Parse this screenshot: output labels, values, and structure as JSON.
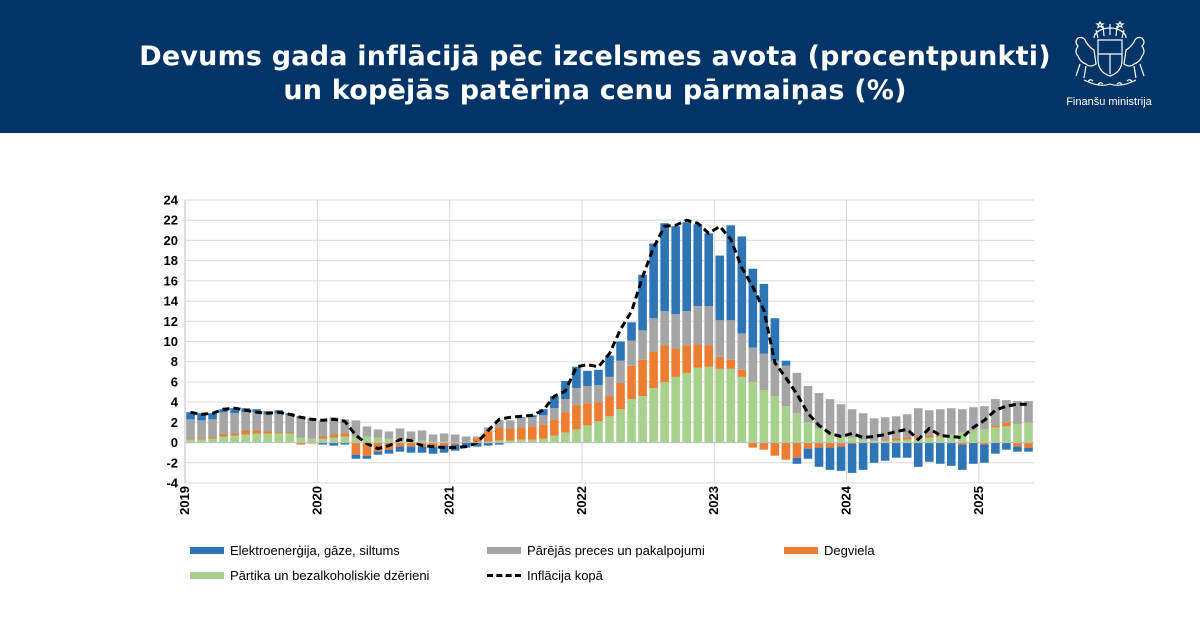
{
  "header": {
    "title_line1": "Devums gada inflācijā pēc izcelsmes avota (procentpunkti)",
    "title_line2": "un kopējās patēriņa cenu pārmaiņas (%)",
    "logo_caption": "Finanšu ministrija",
    "background": "#023467"
  },
  "legend": {
    "energy": "Elektroenerģija, gāze, siltums",
    "other": "Pārējās preces un pakalpojumi",
    "fuel": "Degviela",
    "food": "Pārtika un bezalkoholiskie dzērieni",
    "inflation": "Inflācija kopā"
  },
  "chart_data": {
    "type": "bar",
    "stacked": true,
    "grid": true,
    "legend_position": "bottom",
    "ylim": [
      -4,
      24
    ],
    "yticks": [
      "-4",
      "-2",
      "0",
      "2",
      "4",
      "6",
      "8",
      "10",
      "12",
      "14",
      "16",
      "18",
      "20",
      "22",
      "24"
    ],
    "xtick_labels": [
      "2019",
      "2020",
      "2021",
      "2022",
      "2023",
      "2024",
      "2025"
    ],
    "start": "2019-01",
    "months": [
      "2019-01",
      "2019-02",
      "2019-03",
      "2019-04",
      "2019-05",
      "2019-06",
      "2019-07",
      "2019-08",
      "2019-09",
      "2019-10",
      "2019-11",
      "2019-12",
      "2020-01",
      "2020-02",
      "2020-03",
      "2020-04",
      "2020-05",
      "2020-06",
      "2020-07",
      "2020-08",
      "2020-09",
      "2020-10",
      "2020-11",
      "2020-12",
      "2021-01",
      "2021-02",
      "2021-03",
      "2021-04",
      "2021-05",
      "2021-06",
      "2021-07",
      "2021-08",
      "2021-09",
      "2021-10",
      "2021-11",
      "2021-12",
      "2022-01",
      "2022-02",
      "2022-03",
      "2022-04",
      "2022-05",
      "2022-06",
      "2022-07",
      "2022-08",
      "2022-09",
      "2022-10",
      "2022-11",
      "2022-12",
      "2023-01",
      "2023-02",
      "2023-03",
      "2023-04",
      "2023-05",
      "2023-06",
      "2023-07",
      "2023-08",
      "2023-09",
      "2023-10",
      "2023-11",
      "2023-12",
      "2024-01",
      "2024-02",
      "2024-03",
      "2024-04",
      "2024-05",
      "2024-06",
      "2024-07",
      "2024-08",
      "2024-09",
      "2024-10",
      "2024-11",
      "2024-12",
      "2025-01",
      "2025-02",
      "2025-03",
      "2025-04",
      "2025-05"
    ],
    "colors": {
      "energy": "#2e75b6",
      "other": "#a5a5a5",
      "fuel": "#ed7d31",
      "food": "#a9d18e",
      "inflation": "#000000"
    },
    "series": [
      {
        "name": "Pārtika un bezalkoholiskie dzērieni",
        "key": "food",
        "values": [
          0.3,
          0.3,
          0.4,
          0.6,
          0.7,
          0.8,
          0.9,
          0.9,
          0.9,
          0.9,
          0.5,
          0.4,
          0.4,
          0.5,
          0.6,
          0.6,
          0.6,
          0.5,
          0.4,
          0.3,
          0.3,
          0.2,
          0.1,
          0.1,
          0.0,
          0.0,
          0.0,
          0.1,
          0.2,
          0.2,
          0.3,
          0.3,
          0.4,
          0.7,
          1.0,
          1.3,
          1.7,
          2.1,
          2.6,
          3.3,
          4.3,
          4.6,
          5.4,
          6.0,
          6.5,
          6.9,
          7.4,
          7.5,
          7.3,
          7.3,
          6.5,
          6.0,
          5.2,
          4.6,
          3.6,
          2.9,
          2.0,
          1.4,
          0.9,
          0.6,
          0.5,
          0.3,
          0.2,
          0.2,
          0.2,
          0.3,
          0.4,
          0.5,
          0.6,
          0.8,
          1.0,
          1.2,
          1.3,
          1.5,
          1.6,
          1.8,
          2.0
        ]
      },
      {
        "name": "Degviela",
        "key": "fuel",
        "values": [
          0.1,
          0.1,
          0.1,
          0.2,
          0.2,
          0.4,
          0.3,
          0.2,
          0.1,
          0.1,
          -0.2,
          -0.1,
          0.2,
          0.3,
          0.3,
          -1.2,
          -1.3,
          -0.9,
          -0.7,
          -0.4,
          -0.4,
          -0.4,
          -0.4,
          -0.3,
          -0.2,
          0.0,
          0.4,
          1.0,
          1.3,
          1.2,
          1.2,
          1.3,
          1.4,
          1.6,
          2.0,
          2.4,
          2.2,
          1.9,
          2.0,
          2.6,
          3.3,
          3.6,
          3.6,
          3.6,
          2.8,
          2.7,
          2.3,
          2.1,
          1.2,
          0.9,
          0.7,
          -0.5,
          -0.7,
          -1.3,
          -1.7,
          -1.5,
          -0.6,
          -0.5,
          -0.5,
          -0.4,
          -0.1,
          0.0,
          0.0,
          0.1,
          0.2,
          0.2,
          0.2,
          0.2,
          0.1,
          0.0,
          -0.2,
          0.0,
          -0.2,
          0.2,
          0.4,
          -0.4,
          -0.5
        ]
      },
      {
        "name": "Pārējās preces un pakalpojumi",
        "key": "other",
        "values": [
          1.9,
          1.8,
          1.8,
          2.2,
          2.0,
          1.8,
          1.8,
          1.7,
          1.9,
          1.7,
          1.9,
          1.9,
          1.6,
          1.7,
          1.4,
          1.6,
          1.0,
          0.8,
          0.7,
          1.1,
          0.8,
          1.0,
          0.7,
          0.8,
          0.8,
          0.6,
          0.2,
          0.4,
          0.7,
          0.8,
          0.9,
          0.9,
          0.9,
          1.1,
          1.3,
          1.7,
          1.7,
          1.7,
          1.9,
          2.2,
          2.5,
          2.9,
          3.3,
          3.4,
          3.4,
          3.4,
          3.8,
          3.9,
          3.6,
          3.9,
          3.6,
          3.4,
          3.6,
          3.5,
          4.0,
          4.0,
          3.6,
          3.5,
          3.4,
          3.2,
          2.8,
          2.6,
          2.2,
          2.2,
          2.2,
          2.3,
          2.8,
          2.5,
          2.6,
          2.6,
          2.3,
          2.3,
          2.3,
          2.6,
          2.2,
          2.3,
          2.1
        ]
      },
      {
        "name": "Elektroenerģija, gāze, siltums",
        "key": "energy",
        "values": [
          0.7,
          0.7,
          0.6,
          0.3,
          0.5,
          0.4,
          0.3,
          0.3,
          0.3,
          0.2,
          0.2,
          0.1,
          -0.2,
          -0.3,
          -0.2,
          -0.4,
          -0.3,
          -0.3,
          -0.4,
          -0.5,
          -0.6,
          -0.6,
          -0.7,
          -0.7,
          -0.6,
          -0.5,
          -0.4,
          -0.3,
          -0.2,
          0.0,
          0.1,
          0.2,
          0.6,
          1.2,
          1.8,
          2.1,
          1.5,
          1.5,
          2.1,
          1.9,
          1.8,
          5.5,
          7.4,
          8.7,
          8.7,
          8.8,
          8.1,
          7.2,
          6.4,
          9.4,
          9.6,
          7.8,
          6.9,
          4.2,
          0.5,
          -0.6,
          -1.0,
          -1.9,
          -2.2,
          -2.4,
          -2.9,
          -2.7,
          -2.0,
          -1.8,
          -1.5,
          -1.5,
          -2.4,
          -1.9,
          -2.1,
          -2.3,
          -2.5,
          -2.1,
          -1.8,
          -1.1,
          -0.7,
          -0.5,
          -0.4
        ]
      },
      {
        "name": "Inflācija kopā",
        "key": "inflation",
        "type": "line",
        "values": [
          3.0,
          2.8,
          2.9,
          3.3,
          3.4,
          3.2,
          3.0,
          2.9,
          3.0,
          2.8,
          2.5,
          2.3,
          2.2,
          2.3,
          2.1,
          0.7,
          -0.1,
          -0.6,
          -0.3,
          0.3,
          0.2,
          -0.3,
          -0.4,
          -0.5,
          -0.5,
          -0.4,
          0.0,
          1.2,
          2.3,
          2.5,
          2.6,
          2.7,
          3.2,
          4.6,
          5.1,
          7.5,
          7.7,
          7.5,
          8.8,
          11.2,
          13.0,
          16.4,
          19.3,
          21.4,
          21.5,
          22.0,
          21.7,
          20.7,
          21.4,
          20.1,
          17.3,
          15.4,
          13.1,
          7.9,
          6.4,
          4.8,
          2.9,
          1.7,
          0.9,
          0.6,
          0.9,
          0.5,
          0.6,
          0.8,
          1.1,
          1.3,
          0.3,
          1.4,
          0.7,
          0.6,
          0.5,
          1.5,
          2.2,
          3.2,
          3.6,
          3.8,
          3.8
        ]
      }
    ]
  }
}
